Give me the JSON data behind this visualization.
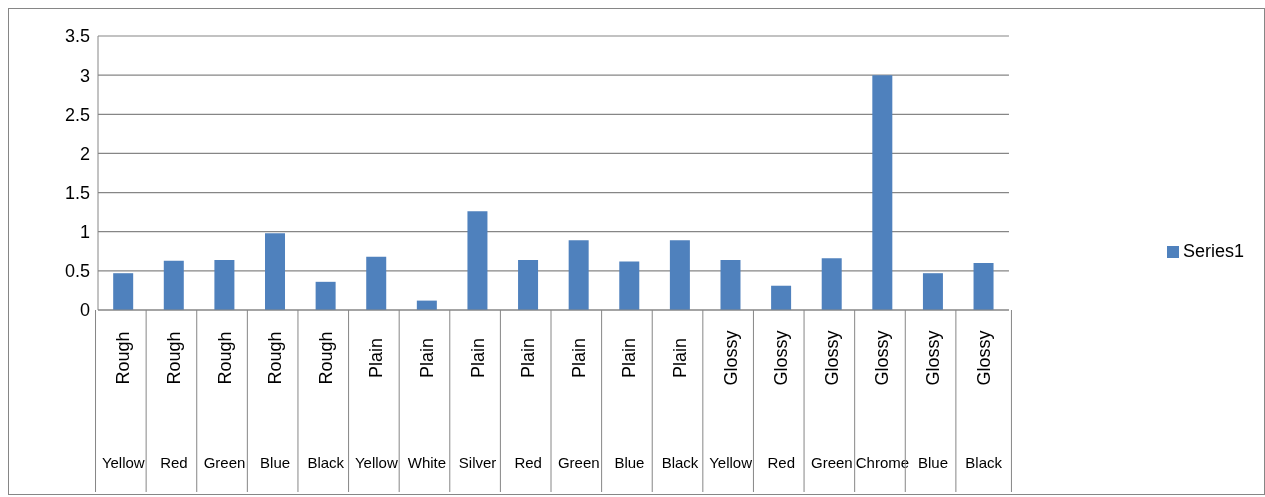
{
  "chart_data": {
    "type": "bar",
    "categories": [
      "Rough\nYellow",
      "Rough\nRed",
      "Rough\nGreen",
      "Rough\nBlue",
      "Rough\nBlack",
      "Plain\nYellow",
      "Plain\nWhite",
      "Plain\nSilver",
      "Plain\nRed",
      "Plain\nGreen",
      "Plain\nBlue",
      "Plain\nBlack",
      "Glossy\nYellow",
      "Glossy\nRed",
      "Glossy\nGreen",
      "Glossy\nChrome",
      "Glossy\nBlue",
      "Glossy\nBlack"
    ],
    "series": [
      {
        "name": "Series1",
        "color": "#4f81bd",
        "values": [
          0.47,
          0.63,
          0.64,
          0.98,
          0.36,
          0.68,
          0.12,
          1.26,
          0.64,
          0.89,
          0.62,
          0.89,
          0.64,
          0.31,
          0.66,
          3.0,
          0.47,
          0.6
        ]
      }
    ],
    "ylim": [
      0,
      3.5
    ],
    "yticks": [
      0,
      0.5,
      1,
      1.5,
      2,
      2.5,
      3,
      3.5
    ],
    "grid": "y",
    "legend": "right"
  }
}
